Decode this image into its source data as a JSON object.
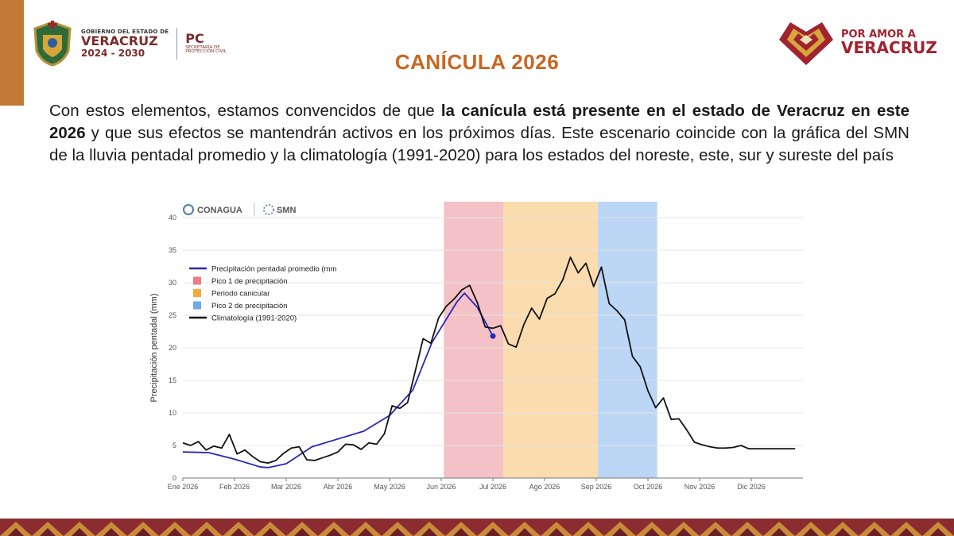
{
  "header": {
    "gov_line1": "GOBIERNO DEL ESTADO DE",
    "gov_line2": "VERACRUZ",
    "gov_line3": "2024 - 2030",
    "pc_title": "PC",
    "pc_sub1": "SECRETARÍA DE",
    "pc_sub2": "PROTECCIÓN CIVIL",
    "slogan_1": "POR AMOR A",
    "slogan_2": "VERACRUZ"
  },
  "title": "CANÍCULA 2026",
  "paragraph": {
    "part1": "Con estos elementos, estamos convencidos de que ",
    "bold": "la canícula está presente en el estado de Veracruz en este 2026",
    "part2": " y que sus efectos se mantendrán activos en los próximos días. Este escenario coincide con la gráfica del SMN de la lluvia pentadal promedio y la climatología (1991-2020) para los estados del noreste, este, sur y sureste del país"
  },
  "colors": {
    "accent": "#c9661f",
    "pico1": "#f4c2c6",
    "canicular": "#fbdcaf",
    "pico2": "#bcd6f5",
    "precip_line": "#2727b8",
    "clim_line": "#111111"
  },
  "chart_data": {
    "type": "line",
    "logos": {
      "conagua": "CONAGUA",
      "smn": "SMN"
    },
    "ylabel": "Precipitación pentadal (mm)",
    "xlabel": "",
    "ylim": [
      0,
      40
    ],
    "yticks": [
      "0",
      "5",
      "10",
      "15",
      "20",
      "25",
      "30",
      "35",
      "40"
    ],
    "xlim": [
      0,
      12
    ],
    "xticks": [
      {
        "label": "Ene 2026",
        "x": 0
      },
      {
        "label": "Feb 2026",
        "x": 1
      },
      {
        "label": "Mar 2026",
        "x": 2
      },
      {
        "label": "Abr 2026",
        "x": 3
      },
      {
        "label": "May 2026",
        "x": 4
      },
      {
        "label": "Jun 2026",
        "x": 5
      },
      {
        "label": "Jul 2026",
        "x": 6
      },
      {
        "label": "Ago 2026",
        "x": 7
      },
      {
        "label": "Sep 2026",
        "x": 8
      },
      {
        "label": "Oct 2026",
        "x": 9
      },
      {
        "label": "Nov 2026",
        "x": 10
      },
      {
        "label": "Dic 2026",
        "x": 11
      }
    ],
    "grid": true,
    "legend_position": "top-left",
    "bands": [
      {
        "name": "Pico 1 de precipitación",
        "x0": 5.05,
        "x1": 6.2,
        "color": "#f4c2c6",
        "legend_color": "#ee7b88"
      },
      {
        "name": "Periodo canicular",
        "x0": 6.2,
        "x1": 8.03,
        "color": "#fbdcaf",
        "legend_color": "#f5ac3e"
      },
      {
        "name": "Pico 2 de precipitación",
        "x0": 8.03,
        "x1": 9.18,
        "color": "#bcd6f5",
        "legend_color": "#6ea8ee"
      }
    ],
    "series": [
      {
        "name": "Precipitación pentadal promedio (mm",
        "color": "#2727b8",
        "x": [
          0,
          0.5,
          1,
          1.5,
          1.65,
          2,
          2.5,
          3,
          3.5,
          4,
          4.45,
          4.82,
          5.3,
          5.45,
          5.7,
          6.0
        ],
        "y": [
          4,
          3.9,
          2.9,
          1.7,
          1.6,
          2.2,
          4.8,
          6.0,
          7.2,
          9.6,
          13.5,
          20.8,
          27.0,
          28.4,
          26.2,
          21.8
        ]
      },
      {
        "name": "Climatología (1991-2020)",
        "color": "#111111",
        "x": [
          0,
          0.15,
          0.3,
          0.45,
          0.6,
          0.75,
          0.9,
          1.05,
          1.2,
          1.35,
          1.5,
          1.65,
          1.8,
          1.95,
          2.1,
          2.25,
          2.4,
          2.55,
          2.7,
          2.85,
          3.0,
          3.15,
          3.3,
          3.45,
          3.6,
          3.75,
          3.9,
          4.05,
          4.2,
          4.35,
          4.5,
          4.65,
          4.8,
          4.95,
          5.1,
          5.25,
          5.4,
          5.55,
          5.7,
          5.85,
          6.0,
          6.15,
          6.3,
          6.45,
          6.6,
          6.75,
          6.9,
          7.05,
          7.2,
          7.35,
          7.5,
          7.65,
          7.8,
          7.95,
          8.1,
          8.25,
          8.4,
          8.55,
          8.7,
          8.85,
          9.0,
          9.15,
          9.3,
          9.45,
          9.6,
          9.75,
          9.9,
          10.05,
          10.2,
          10.35,
          10.5,
          10.65,
          10.8,
          10.95,
          11.1,
          11.25,
          11.4,
          11.55,
          11.7,
          11.85
        ],
        "y": [
          5.4,
          5.0,
          5.6,
          4.3,
          4.9,
          4.6,
          6.7,
          3.7,
          4.3,
          3.3,
          2.5,
          2.3,
          2.7,
          3.8,
          4.6,
          4.8,
          2.8,
          2.7,
          3.1,
          3.5,
          4.0,
          5.2,
          5.1,
          4.4,
          5.4,
          5.2,
          6.8,
          11.1,
          10.7,
          11.6,
          16.5,
          21.4,
          20.7,
          24.6,
          26.4,
          27.5,
          28.9,
          29.6,
          26.9,
          23.2,
          23.0,
          23.4,
          20.6,
          20.1,
          23.6,
          26.1,
          24.4,
          27.6,
          28.3,
          30.4,
          33.9,
          31.5,
          33.0,
          29.4,
          32.4,
          26.8,
          25.7,
          24.3,
          18.7,
          17.1,
          13.4,
          10.8,
          12.3,
          9.0,
          9.1,
          7.4,
          5.5,
          5.1,
          4.8,
          4.6,
          4.6,
          4.7,
          5.0,
          4.5,
          4.5,
          4.5,
          4.5,
          4.5,
          4.5,
          4.5
        ]
      }
    ]
  }
}
